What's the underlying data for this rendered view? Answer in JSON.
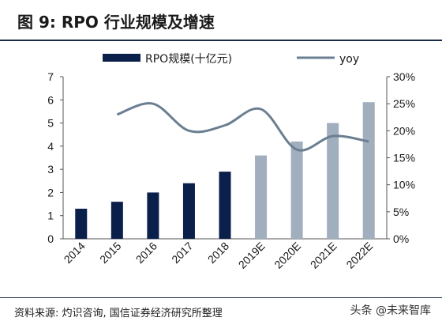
{
  "title": "图 9:  RPO 行业规模及增速",
  "source": "资料来源:  灼识咨询,  国信证券经济研究所整理",
  "watermark": "头条 @未来智库",
  "chart_data": {
    "type": "bar",
    "categories": [
      "2014",
      "2015",
      "2016",
      "2017",
      "2018",
      "2019E",
      "2020E",
      "2021E",
      "2022E"
    ],
    "series": [
      {
        "name": "RPO规模(十亿元)",
        "values": [
          1.3,
          1.6,
          2.0,
          2.4,
          2.9,
          3.6,
          4.2,
          5.0,
          5.9
        ]
      },
      {
        "name": "yoy",
        "values": [
          null,
          23,
          25,
          20,
          21,
          24,
          16.5,
          19,
          18
        ]
      }
    ],
    "bar_colors": [
      "#0b1f4b",
      "#0b1f4b",
      "#0b1f4b",
      "#0b1f4b",
      "#0b1f4b",
      "#a0aebd",
      "#a0aebd",
      "#a0aebd",
      "#a0aebd"
    ],
    "line_color": "#6b7f92",
    "y_left": {
      "min": 0,
      "max": 7,
      "ticks": [
        "0",
        "1",
        "2",
        "3",
        "4",
        "5",
        "6",
        "7"
      ]
    },
    "y_right": {
      "min": 0,
      "max": 30,
      "ticks": [
        "0%",
        "5%",
        "10%",
        "15%",
        "20%",
        "25%",
        "30%"
      ]
    },
    "legend_position": "top",
    "grid": false
  }
}
